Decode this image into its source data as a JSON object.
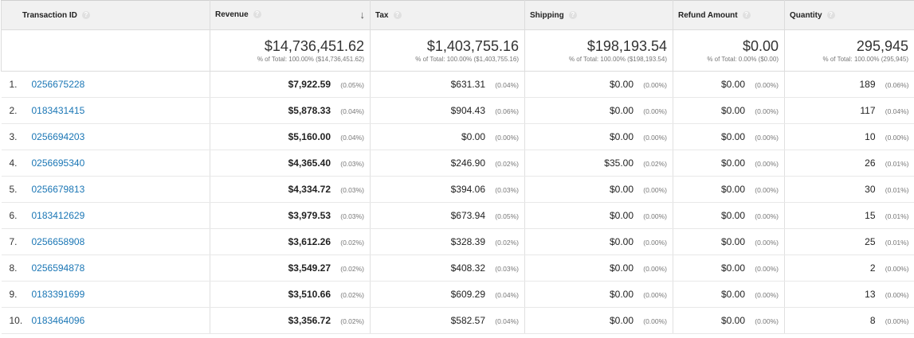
{
  "columns": {
    "transaction_id": "Transaction ID",
    "revenue": "Revenue",
    "tax": "Tax",
    "shipping": "Shipping",
    "refund_amount": "Refund Amount",
    "quantity": "Quantity"
  },
  "totals": {
    "revenue": {
      "value": "$14,736,451.62",
      "sub": "% of Total: 100.00% ($14,736,451.62)"
    },
    "tax": {
      "value": "$1,403,755.16",
      "sub": "% of Total: 100.00% ($1,403,755.16)"
    },
    "shipping": {
      "value": "$198,193.54",
      "sub": "% of Total: 100.00% ($198,193.54)"
    },
    "refund_amount": {
      "value": "$0.00",
      "sub": "% of Total: 0.00% ($0.00)"
    },
    "quantity": {
      "value": "295,945",
      "sub": "% of Total: 100.00% (295,945)"
    }
  },
  "rows": [
    {
      "index": "1.",
      "id": "0256675228",
      "revenue": "$7,922.59",
      "revenue_pct": "(0.05%)",
      "tax": "$631.31",
      "tax_pct": "(0.04%)",
      "shipping": "$0.00",
      "shipping_pct": "(0.00%)",
      "refund": "$0.00",
      "refund_pct": "(0.00%)",
      "quantity": "189",
      "quantity_pct": "(0.06%)"
    },
    {
      "index": "2.",
      "id": "0183431415",
      "revenue": "$5,878.33",
      "revenue_pct": "(0.04%)",
      "tax": "$904.43",
      "tax_pct": "(0.06%)",
      "shipping": "$0.00",
      "shipping_pct": "(0.00%)",
      "refund": "$0.00",
      "refund_pct": "(0.00%)",
      "quantity": "117",
      "quantity_pct": "(0.04%)"
    },
    {
      "index": "3.",
      "id": "0256694203",
      "revenue": "$5,160.00",
      "revenue_pct": "(0.04%)",
      "tax": "$0.00",
      "tax_pct": "(0.00%)",
      "shipping": "$0.00",
      "shipping_pct": "(0.00%)",
      "refund": "$0.00",
      "refund_pct": "(0.00%)",
      "quantity": "10",
      "quantity_pct": "(0.00%)"
    },
    {
      "index": "4.",
      "id": "0256695340",
      "revenue": "$4,365.40",
      "revenue_pct": "(0.03%)",
      "tax": "$246.90",
      "tax_pct": "(0.02%)",
      "shipping": "$35.00",
      "shipping_pct": "(0.02%)",
      "refund": "$0.00",
      "refund_pct": "(0.00%)",
      "quantity": "26",
      "quantity_pct": "(0.01%)"
    },
    {
      "index": "5.",
      "id": "0256679813",
      "revenue": "$4,334.72",
      "revenue_pct": "(0.03%)",
      "tax": "$394.06",
      "tax_pct": "(0.03%)",
      "shipping": "$0.00",
      "shipping_pct": "(0.00%)",
      "refund": "$0.00",
      "refund_pct": "(0.00%)",
      "quantity": "30",
      "quantity_pct": "(0.01%)"
    },
    {
      "index": "6.",
      "id": "0183412629",
      "revenue": "$3,979.53",
      "revenue_pct": "(0.03%)",
      "tax": "$673.94",
      "tax_pct": "(0.05%)",
      "shipping": "$0.00",
      "shipping_pct": "(0.00%)",
      "refund": "$0.00",
      "refund_pct": "(0.00%)",
      "quantity": "15",
      "quantity_pct": "(0.01%)"
    },
    {
      "index": "7.",
      "id": "0256658908",
      "revenue": "$3,612.26",
      "revenue_pct": "(0.02%)",
      "tax": "$328.39",
      "tax_pct": "(0.02%)",
      "shipping": "$0.00",
      "shipping_pct": "(0.00%)",
      "refund": "$0.00",
      "refund_pct": "(0.00%)",
      "quantity": "25",
      "quantity_pct": "(0.01%)"
    },
    {
      "index": "8.",
      "id": "0256594878",
      "revenue": "$3,549.27",
      "revenue_pct": "(0.02%)",
      "tax": "$408.32",
      "tax_pct": "(0.03%)",
      "shipping": "$0.00",
      "shipping_pct": "(0.00%)",
      "refund": "$0.00",
      "refund_pct": "(0.00%)",
      "quantity": "2",
      "quantity_pct": "(0.00%)"
    },
    {
      "index": "9.",
      "id": "0183391699",
      "revenue": "$3,510.66",
      "revenue_pct": "(0.02%)",
      "tax": "$609.29",
      "tax_pct": "(0.04%)",
      "shipping": "$0.00",
      "shipping_pct": "(0.00%)",
      "refund": "$0.00",
      "refund_pct": "(0.00%)",
      "quantity": "13",
      "quantity_pct": "(0.00%)"
    },
    {
      "index": "10.",
      "id": "0183464096",
      "revenue": "$3,356.72",
      "revenue_pct": "(0.02%)",
      "tax": "$582.57",
      "tax_pct": "(0.04%)",
      "shipping": "$0.00",
      "shipping_pct": "(0.00%)",
      "refund": "$0.00",
      "refund_pct": "(0.00%)",
      "quantity": "8",
      "quantity_pct": "(0.00%)"
    }
  ],
  "icons": {
    "help": "question-circle-icon",
    "sort": "arrow-down-icon"
  },
  "colors": {
    "link": "#1a76b5",
    "header_bg": "#f1f1f1"
  }
}
